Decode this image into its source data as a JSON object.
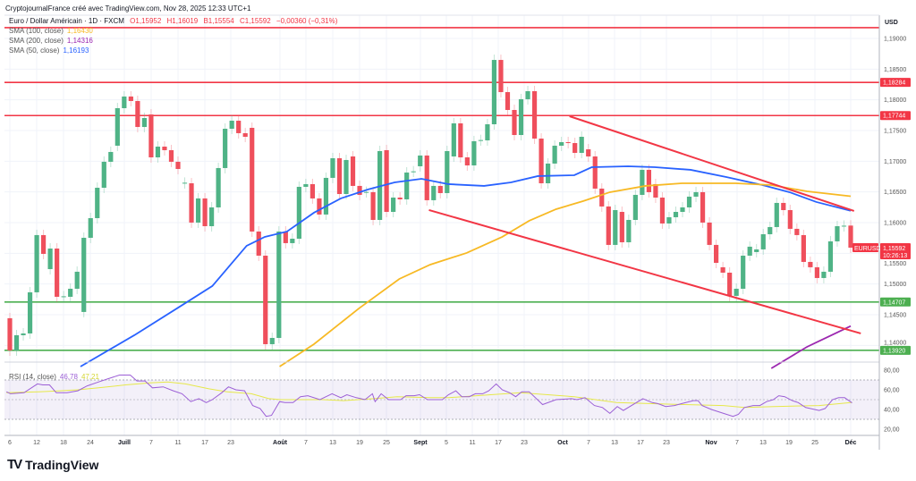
{
  "header": {
    "attribution": "CryptojournalFrance créé avec TradingView.com, Nov 28, 2025 12:33 UTC+1",
    "symbol": "Euro / Dollar Américain · 1D · FXCM",
    "open": "O1,15952",
    "high": "H1,16019",
    "low": "B1,15554",
    "close": "C1,15592",
    "change": "−0,00360 (−0,31%)"
  },
  "indicators": [
    {
      "label": "SMA (100, close)",
      "value": "1,16430",
      "color": "#f7b924"
    },
    {
      "label": "SMA (200, close)",
      "value": "1,14316",
      "color": "#9c27b0"
    },
    {
      "label": "SMA (50, close)",
      "value": "1,16193",
      "color": "#2962ff"
    }
  ],
  "rsi_legend": {
    "label": "RSI (14, close)",
    "value": "46,78",
    "ma_value": "47,21",
    "color": "#9c5fd6",
    "ma_color": "#e6e84a"
  },
  "price_axis": {
    "currency": "USD",
    "ticks": [
      "1,19000",
      "1,18500",
      "1,18000",
      "1,17500",
      "1,17000",
      "1,16500",
      "1,16000",
      "1,15500",
      "1,15000",
      "1,14500",
      "1,14000"
    ],
    "tags": [
      {
        "value": "1,18284",
        "color": "#f23645"
      },
      {
        "value": "1,17744",
        "color": "#f23645"
      },
      {
        "value": "1,14707",
        "color": "#4caf50"
      },
      {
        "value": "1,13920",
        "color": "#4caf50"
      }
    ],
    "current": {
      "symbol": "EURUSD",
      "value": "1,15592",
      "countdown": "10:26:13",
      "color": "#f23645"
    }
  },
  "rsi_axis": {
    "ticks": [
      "80,00",
      "60,00",
      "40,00",
      "20,00"
    ]
  },
  "time_axis": {
    "labels": [
      "6",
      "12",
      "18",
      "24",
      "Juill",
      "7",
      "11",
      "17",
      "23",
      "Août",
      "7",
      "13",
      "19",
      "25",
      "Sept",
      "5",
      "11",
      "17",
      "23",
      "Oct",
      "7",
      "13",
      "17",
      "23",
      "Nov",
      "7",
      "13",
      "19",
      "25",
      "Déc"
    ],
    "month_labels": [
      "Juill",
      "Août",
      "Sept",
      "Oct",
      "Nov",
      "Déc"
    ]
  },
  "footer": {
    "brand": "TradingView"
  },
  "chart_data": {
    "type": "candlestick",
    "symbol": "EURUSD",
    "timeframe": "1D",
    "ylim": [
      1.137,
      1.1935
    ],
    "grid": true,
    "colors": {
      "up": "#4fb386",
      "down": "#ef4f5c"
    },
    "candles_oc": [
      [
        1.14443,
        1.13918
      ],
      [
        1.13918,
        1.14166
      ],
      [
        1.14166,
        1.14195
      ],
      [
        1.14195,
        1.14865
      ],
      [
        1.14865,
        1.15797
      ],
      [
        1.15797,
        1.15491
      ],
      [
        1.15243,
        1.15578
      ],
      [
        1.15578,
        1.14792
      ],
      [
        1.14792,
        1.148
      ],
      [
        1.14792,
        1.14923
      ],
      [
        1.14923,
        1.152
      ],
      [
        1.14545,
        1.15753
      ],
      [
        1.15753,
        1.16073
      ],
      [
        1.16073,
        1.16568
      ],
      [
        1.16568,
        1.16991
      ],
      [
        1.16991,
        1.17151
      ],
      [
        1.17253,
        1.17864
      ],
      [
        1.17864,
        1.18054
      ],
      [
        1.18054,
        1.17981
      ],
      [
        1.17981,
        1.17558
      ],
      [
        1.17558,
        1.17704
      ],
      [
        1.17762,
        1.17063
      ],
      [
        1.17063,
        1.17238
      ],
      [
        1.17238,
        1.1718
      ],
      [
        1.1718,
        1.16991
      ],
      [
        1.16991,
        1.16874
      ],
      [
        1.16641,
        1.1665
      ],
      [
        1.16641,
        1.16001
      ],
      [
        1.16001,
        1.16394
      ],
      [
        1.16394,
        1.15942
      ],
      [
        1.15942,
        1.16248
      ],
      [
        1.16248,
        1.16889
      ],
      [
        1.16889,
        1.17529
      ],
      [
        1.17529,
        1.1766
      ],
      [
        1.1766,
        1.17457
      ],
      [
        1.17457,
        1.17398
      ],
      [
        1.17544,
        1.15855
      ],
      [
        1.15855,
        1.15462
      ],
      [
        1.15462,
        1.1402
      ],
      [
        1.1402,
        1.14122
      ],
      [
        1.14122,
        1.15855
      ],
      [
        1.15855,
        1.15666
      ],
      [
        1.15666,
        1.15738
      ],
      [
        1.15738,
        1.16583
      ],
      [
        1.16583,
        1.16627
      ],
      [
        1.16627,
        1.16394
      ],
      [
        1.16394,
        1.16132
      ],
      [
        1.16132,
        1.16729
      ],
      [
        1.16729,
        1.17049
      ],
      [
        1.17049,
        1.16466
      ],
      [
        1.16466,
        1.1702
      ],
      [
        1.17078,
        1.16598
      ],
      [
        1.16598,
        1.16452
      ],
      [
        1.16496,
        1.165
      ],
      [
        1.16496,
        1.16044
      ],
      [
        1.16044,
        1.17165
      ],
      [
        1.1718,
        1.16175
      ],
      [
        1.16175,
        1.16408
      ],
      [
        1.16408,
        1.16379
      ],
      [
        1.16379,
        1.16816
      ],
      [
        1.1683,
        1.16835
      ],
      [
        1.16918,
        1.17093
      ],
      [
        1.17093,
        1.16365
      ],
      [
        1.16365,
        1.16598
      ],
      [
        1.16598,
        1.16481
      ],
      [
        1.16481,
        1.17165
      ],
      [
        1.17078,
        1.17617
      ],
      [
        1.17617,
        1.17063
      ],
      [
        1.17063,
        1.16932
      ],
      [
        1.16932,
        1.17326
      ],
      [
        1.1734,
        1.17345
      ],
      [
        1.1734,
        1.17602
      ],
      [
        1.17602,
        1.1865
      ],
      [
        1.1865,
        1.18126
      ],
      [
        1.18126,
        1.17835
      ],
      [
        1.17835,
        1.17427
      ],
      [
        1.17427,
        1.1801
      ],
      [
        1.1801,
        1.18141
      ],
      [
        1.18141,
        1.17369
      ],
      [
        1.17369,
        1.16641
      ],
      [
        1.16641,
        1.16962
      ],
      [
        1.16962,
        1.17253
      ],
      [
        1.17253,
        1.17311
      ],
      [
        1.17311,
        1.17296
      ],
      [
        1.17296,
        1.17136
      ],
      [
        1.17136,
        1.17398
      ],
      [
        1.17194,
        1.17078
      ],
      [
        1.17078,
        1.16554
      ],
      [
        1.16554,
        1.16263
      ],
      [
        1.16263,
        1.15637
      ],
      [
        1.15637,
        1.16204
      ],
      [
        1.16175,
        1.1568
      ],
      [
        1.1568,
        1.16044
      ],
      [
        1.16044,
        1.16452
      ],
      [
        1.16452,
        1.1686
      ],
      [
        1.1686,
        1.16496
      ],
      [
        1.16627,
        1.16408
      ],
      [
        1.16408,
        1.15986
      ],
      [
        1.15986,
        1.16088
      ],
      [
        1.16088,
        1.16175
      ],
      [
        1.16175,
        1.16248
      ],
      [
        1.16248,
        1.16423
      ],
      [
        1.16423,
        1.16496
      ],
      [
        1.16496,
        1.16001
      ],
      [
        1.16001,
        1.15637
      ],
      [
        1.15637,
        1.15345
      ],
      [
        1.15273,
        1.15185
      ],
      [
        1.15185,
        1.14807
      ],
      [
        1.14807,
        1.14923
      ],
      [
        1.14923,
        1.15462
      ],
      [
        1.15462,
        1.15608
      ],
      [
        1.1552,
        1.15564
      ],
      [
        1.15564,
        1.15811
      ],
      [
        1.15811,
        1.15928
      ],
      [
        1.15928,
        1.16321
      ],
      [
        1.16321,
        1.16204
      ],
      [
        1.16204,
        1.15899
      ],
      [
        1.15899,
        1.15797
      ],
      [
        1.15797,
        1.1536
      ],
      [
        1.1536,
        1.15273
      ],
      [
        1.15273,
        1.15098
      ],
      [
        1.15098,
        1.152
      ],
      [
        1.152,
        1.15695
      ],
      [
        1.15695,
        1.15942
      ],
      [
        1.15942,
        1.1595
      ],
      [
        1.15952,
        1.15592
      ]
    ],
    "sma_series": [
      {
        "name": "SMA (50, close)",
        "color": "#2962ff",
        "points": [
          [
            11.5,
            1.13656
          ],
          [
            19.5,
            1.14166
          ],
          [
            26.9,
            1.14676
          ],
          [
            31.1,
            1.14967
          ],
          [
            36.2,
            1.15622
          ],
          [
            38.9,
            1.15768
          ],
          [
            42.2,
            1.15855
          ],
          [
            46.2,
            1.16161
          ],
          [
            50.2,
            1.16394
          ],
          [
            54.2,
            1.16539
          ],
          [
            58.2,
            1.16656
          ],
          [
            62.2,
            1.16714
          ],
          [
            66.2,
            1.16627
          ],
          [
            71.5,
            1.16598
          ],
          [
            75.5,
            1.16656
          ],
          [
            79.5,
            1.16758
          ],
          [
            84.9,
            1.16772
          ],
          [
            87.5,
            1.16903
          ],
          [
            92.9,
            1.16918
          ],
          [
            96.9,
            1.16903
          ],
          [
            102.2,
            1.1686
          ],
          [
            107.5,
            1.16743
          ],
          [
            112.9,
            1.16612
          ],
          [
            116.9,
            1.16496
          ],
          [
            120.9,
            1.16336
          ],
          [
            126,
            1.16193
          ]
        ]
      },
      {
        "name": "SMA (100, close)",
        "color": "#f7b924",
        "points": [
          [
            41.1,
            1.13656
          ],
          [
            46.2,
            1.1402
          ],
          [
            52.9,
            1.14603
          ],
          [
            58.9,
            1.15083
          ],
          [
            63.5,
            1.15316
          ],
          [
            68.9,
            1.15506
          ],
          [
            74.2,
            1.15768
          ],
          [
            78.2,
            1.1603
          ],
          [
            82.2,
            1.16219
          ],
          [
            86.2,
            1.1635
          ],
          [
            90.2,
            1.16496
          ],
          [
            95.5,
            1.16598
          ],
          [
            100.9,
            1.16641
          ],
          [
            108.9,
            1.16641
          ],
          [
            114.2,
            1.16612
          ],
          [
            119.5,
            1.1651
          ],
          [
            126,
            1.1643
          ]
        ]
      },
      {
        "name": "SMA (200, close)",
        "color": "#9c27b0",
        "points": [
          [
            114.2,
            1.13627
          ],
          [
            119.5,
            1.13976
          ],
          [
            126,
            1.14316
          ]
        ]
      }
    ],
    "horizontal_levels": [
      {
        "price": 1.19175,
        "color": "#f23645"
      },
      {
        "price": 1.18284,
        "color": "#f23645"
      },
      {
        "price": 1.17744,
        "color": "#f23645"
      },
      {
        "price": 1.14707,
        "color": "#4caf50"
      },
      {
        "price": 1.1392,
        "color": "#4caf50"
      }
    ],
    "trend_lines": [
      {
        "from": [
          84.2,
          1.17733
        ],
        "to": [
          126.5,
          1.1619
        ],
        "color": "#f23645"
      },
      {
        "from": [
          63.3,
          1.16205
        ],
        "to": [
          127.5,
          1.14195
        ],
        "color": "#f23645"
      }
    ],
    "rsi": {
      "ylim": [
        15,
        85
      ],
      "band": [
        30,
        70
      ],
      "mid": 50,
      "values": [
        [
          0.5,
          58
        ],
        [
          1.1,
          56
        ],
        [
          3.1,
          57
        ],
        [
          5.1,
          66
        ],
        [
          5.9,
          65
        ],
        [
          6.9,
          65
        ],
        [
          7.9,
          57
        ],
        [
          9.5,
          57
        ],
        [
          11.1,
          59
        ],
        [
          12.5,
          64
        ],
        [
          14.2,
          68
        ],
        [
          15.5,
          71
        ],
        [
          17.3,
          75
        ],
        [
          18.9,
          75
        ],
        [
          19.9,
          69
        ],
        [
          21.1,
          69
        ],
        [
          22.2,
          62
        ],
        [
          23.8,
          63
        ],
        [
          25.3,
          59
        ],
        [
          26.6,
          56
        ],
        [
          27.9,
          48
        ],
        [
          29.1,
          51
        ],
        [
          30.2,
          47
        ],
        [
          31.1,
          50
        ],
        [
          32.5,
          57
        ],
        [
          33.5,
          63
        ],
        [
          34.6,
          60
        ],
        [
          35.9,
          59
        ],
        [
          37.1,
          44
        ],
        [
          38.2,
          41
        ],
        [
          39.1,
          33
        ],
        [
          39.9,
          34
        ],
        [
          41.1,
          48
        ],
        [
          41.9,
          47
        ],
        [
          43.1,
          47
        ],
        [
          44.2,
          53
        ],
        [
          45.3,
          54
        ],
        [
          47.1,
          50
        ],
        [
          48.9,
          56
        ],
        [
          50.2,
          52
        ],
        [
          51.1,
          55
        ],
        [
          52.5,
          52
        ],
        [
          53.8,
          50
        ],
        [
          54.9,
          56
        ],
        [
          55.3,
          48
        ],
        [
          56.2,
          56
        ],
        [
          57.3,
          50
        ],
        [
          59.1,
          50
        ],
        [
          59.9,
          54
        ],
        [
          61.1,
          54
        ],
        [
          61.9,
          55
        ],
        [
          63.1,
          50
        ],
        [
          63.9,
          50
        ],
        [
          65.3,
          50
        ],
        [
          66.2,
          55
        ],
        [
          67.3,
          59
        ],
        [
          68.2,
          53
        ],
        [
          69.3,
          53
        ],
        [
          70.2,
          56
        ],
        [
          71.3,
          56
        ],
        [
          72.2,
          59
        ],
        [
          73.3,
          66
        ],
        [
          74.2,
          60
        ],
        [
          75.3,
          57
        ],
        [
          76.2,
          53
        ],
        [
          77.1,
          58
        ],
        [
          78.2,
          58
        ],
        [
          80.2,
          45
        ],
        [
          82.2,
          50
        ],
        [
          84.5,
          51
        ],
        [
          85.3,
          50
        ],
        [
          86.5,
          52
        ],
        [
          87.9,
          44
        ],
        [
          89.1,
          42
        ],
        [
          90.2,
          36
        ],
        [
          91.3,
          43
        ],
        [
          92.2,
          39
        ],
        [
          95.1,
          51
        ],
        [
          96.5,
          47
        ],
        [
          97.3,
          46
        ],
        [
          98.5,
          43
        ],
        [
          99.8,
          44
        ],
        [
          100.9,
          46
        ],
        [
          102.6,
          49
        ],
        [
          103.3,
          49
        ],
        [
          103.9,
          44
        ],
        [
          105.3,
          40
        ],
        [
          107.1,
          36
        ],
        [
          108.5,
          33
        ],
        [
          109.3,
          35
        ],
        [
          110.2,
          42
        ],
        [
          111.5,
          44
        ],
        [
          112.5,
          44
        ],
        [
          113.5,
          48
        ],
        [
          114.5,
          50
        ],
        [
          115.3,
          54
        ],
        [
          116.2,
          53
        ],
        [
          117.3,
          49
        ],
        [
          118.2,
          47
        ],
        [
          119.3,
          42
        ],
        [
          121.3,
          39
        ],
        [
          122.2,
          41
        ],
        [
          123.3,
          50
        ],
        [
          124.2,
          52
        ],
        [
          125.1,
          52
        ],
        [
          126.2,
          46.78
        ]
      ],
      "ma_values": [
        [
          0.5,
          57
        ],
        [
          5.3,
          58
        ],
        [
          8.5,
          59
        ],
        [
          11.1,
          60
        ],
        [
          14.2,
          62
        ],
        [
          18.2,
          65
        ],
        [
          21.8,
          67
        ],
        [
          24.5,
          68
        ],
        [
          27.1,
          66
        ],
        [
          30.6,
          61
        ],
        [
          33.3,
          58
        ],
        [
          36.9,
          56
        ],
        [
          39.5,
          51
        ],
        [
          41.3,
          50
        ],
        [
          47.5,
          50
        ],
        [
          50.6,
          49
        ],
        [
          55.1,
          51
        ],
        [
          58.6,
          53
        ],
        [
          63.5,
          52
        ],
        [
          66.2,
          52
        ],
        [
          72.5,
          55
        ],
        [
          76.9,
          57
        ],
        [
          84.9,
          53
        ],
        [
          91.2,
          47
        ],
        [
          96,
          46
        ],
        [
          101.3,
          45
        ],
        [
          107.1,
          44
        ],
        [
          110.2,
          42
        ],
        [
          114.6,
          43
        ],
        [
          121.3,
          44
        ],
        [
          126.2,
          47.21
        ]
      ]
    }
  }
}
